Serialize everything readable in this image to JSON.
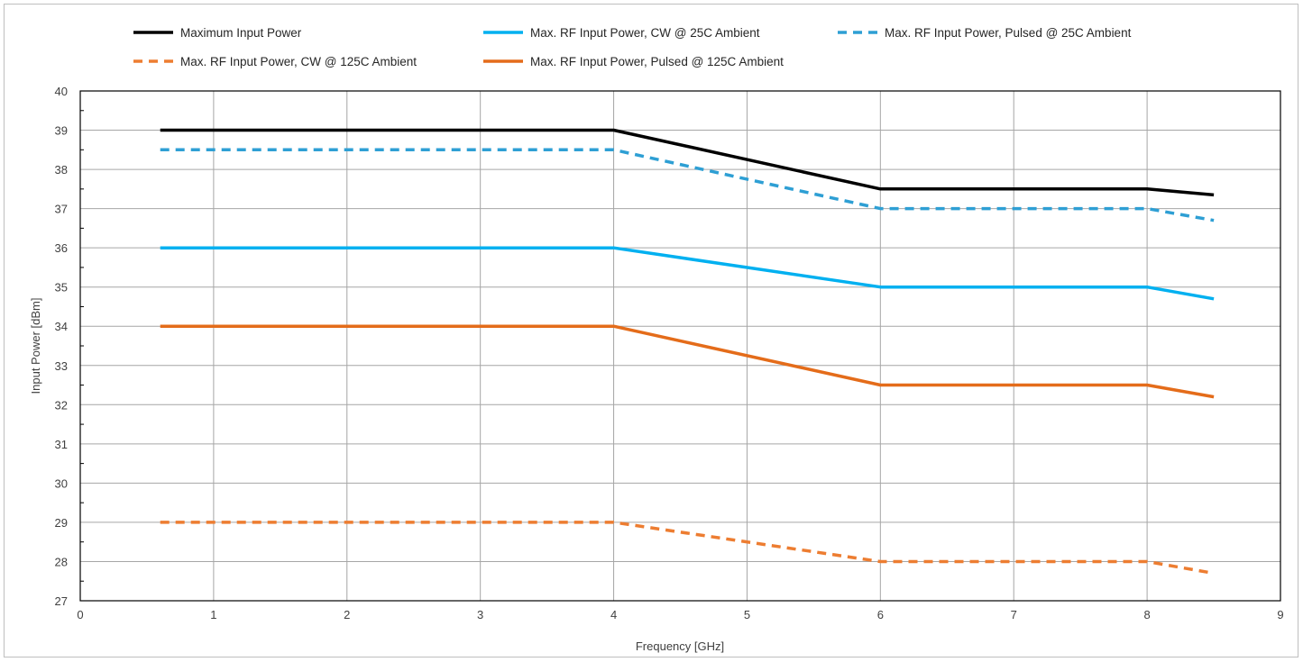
{
  "chart_data": {
    "type": "line",
    "title": "",
    "xlabel": "Frequency [GHz]",
    "ylabel": "Input Power [dBm]",
    "xlim": [
      0,
      9
    ],
    "ylim": [
      27,
      40
    ],
    "x_ticks": [
      "0",
      "1",
      "2",
      "3",
      "4",
      "5",
      "6",
      "7",
      "8",
      "9"
    ],
    "y_ticks": [
      "27",
      "28",
      "29",
      "30",
      "31",
      "32",
      "33",
      "34",
      "35",
      "36",
      "37",
      "38",
      "39",
      "40"
    ],
    "grid": true,
    "legend_position": "top",
    "series": [
      {
        "name": "Maximum Input Power",
        "color": "#000000",
        "style": "solid",
        "x": [
          0.6,
          4,
          6,
          8,
          8.5
        ],
        "y": [
          39,
          39,
          37.5,
          37.5,
          37.35
        ]
      },
      {
        "name": "Max. RF Input Power, CW @ 25C Ambient",
        "color": "#00b0f0",
        "style": "solid",
        "x": [
          0.6,
          4,
          6,
          8,
          8.5
        ],
        "y": [
          36,
          36,
          35,
          35,
          34.7
        ]
      },
      {
        "name": "Max. RF Input Power, Pulsed @ 25C Ambient",
        "color": "#2e9fd4",
        "style": "dashed",
        "x": [
          0.6,
          4,
          6,
          8,
          8.5
        ],
        "y": [
          38.5,
          38.5,
          37,
          37,
          36.7
        ]
      },
      {
        "name": "Max. RF Input Power, CW @ 125C Ambient",
        "color": "#ed7d31",
        "style": "dashed",
        "x": [
          0.6,
          4,
          6,
          8,
          8.5
        ],
        "y": [
          29,
          29,
          28,
          28,
          27.7
        ]
      },
      {
        "name": "Max. RF Input Power, Pulsed @ 125C Ambient",
        "color": "#e46c1a",
        "style": "solid",
        "x": [
          0.6,
          4,
          6,
          8,
          8.5
        ],
        "y": [
          34,
          34,
          32.5,
          32.5,
          32.2
        ]
      }
    ]
  }
}
